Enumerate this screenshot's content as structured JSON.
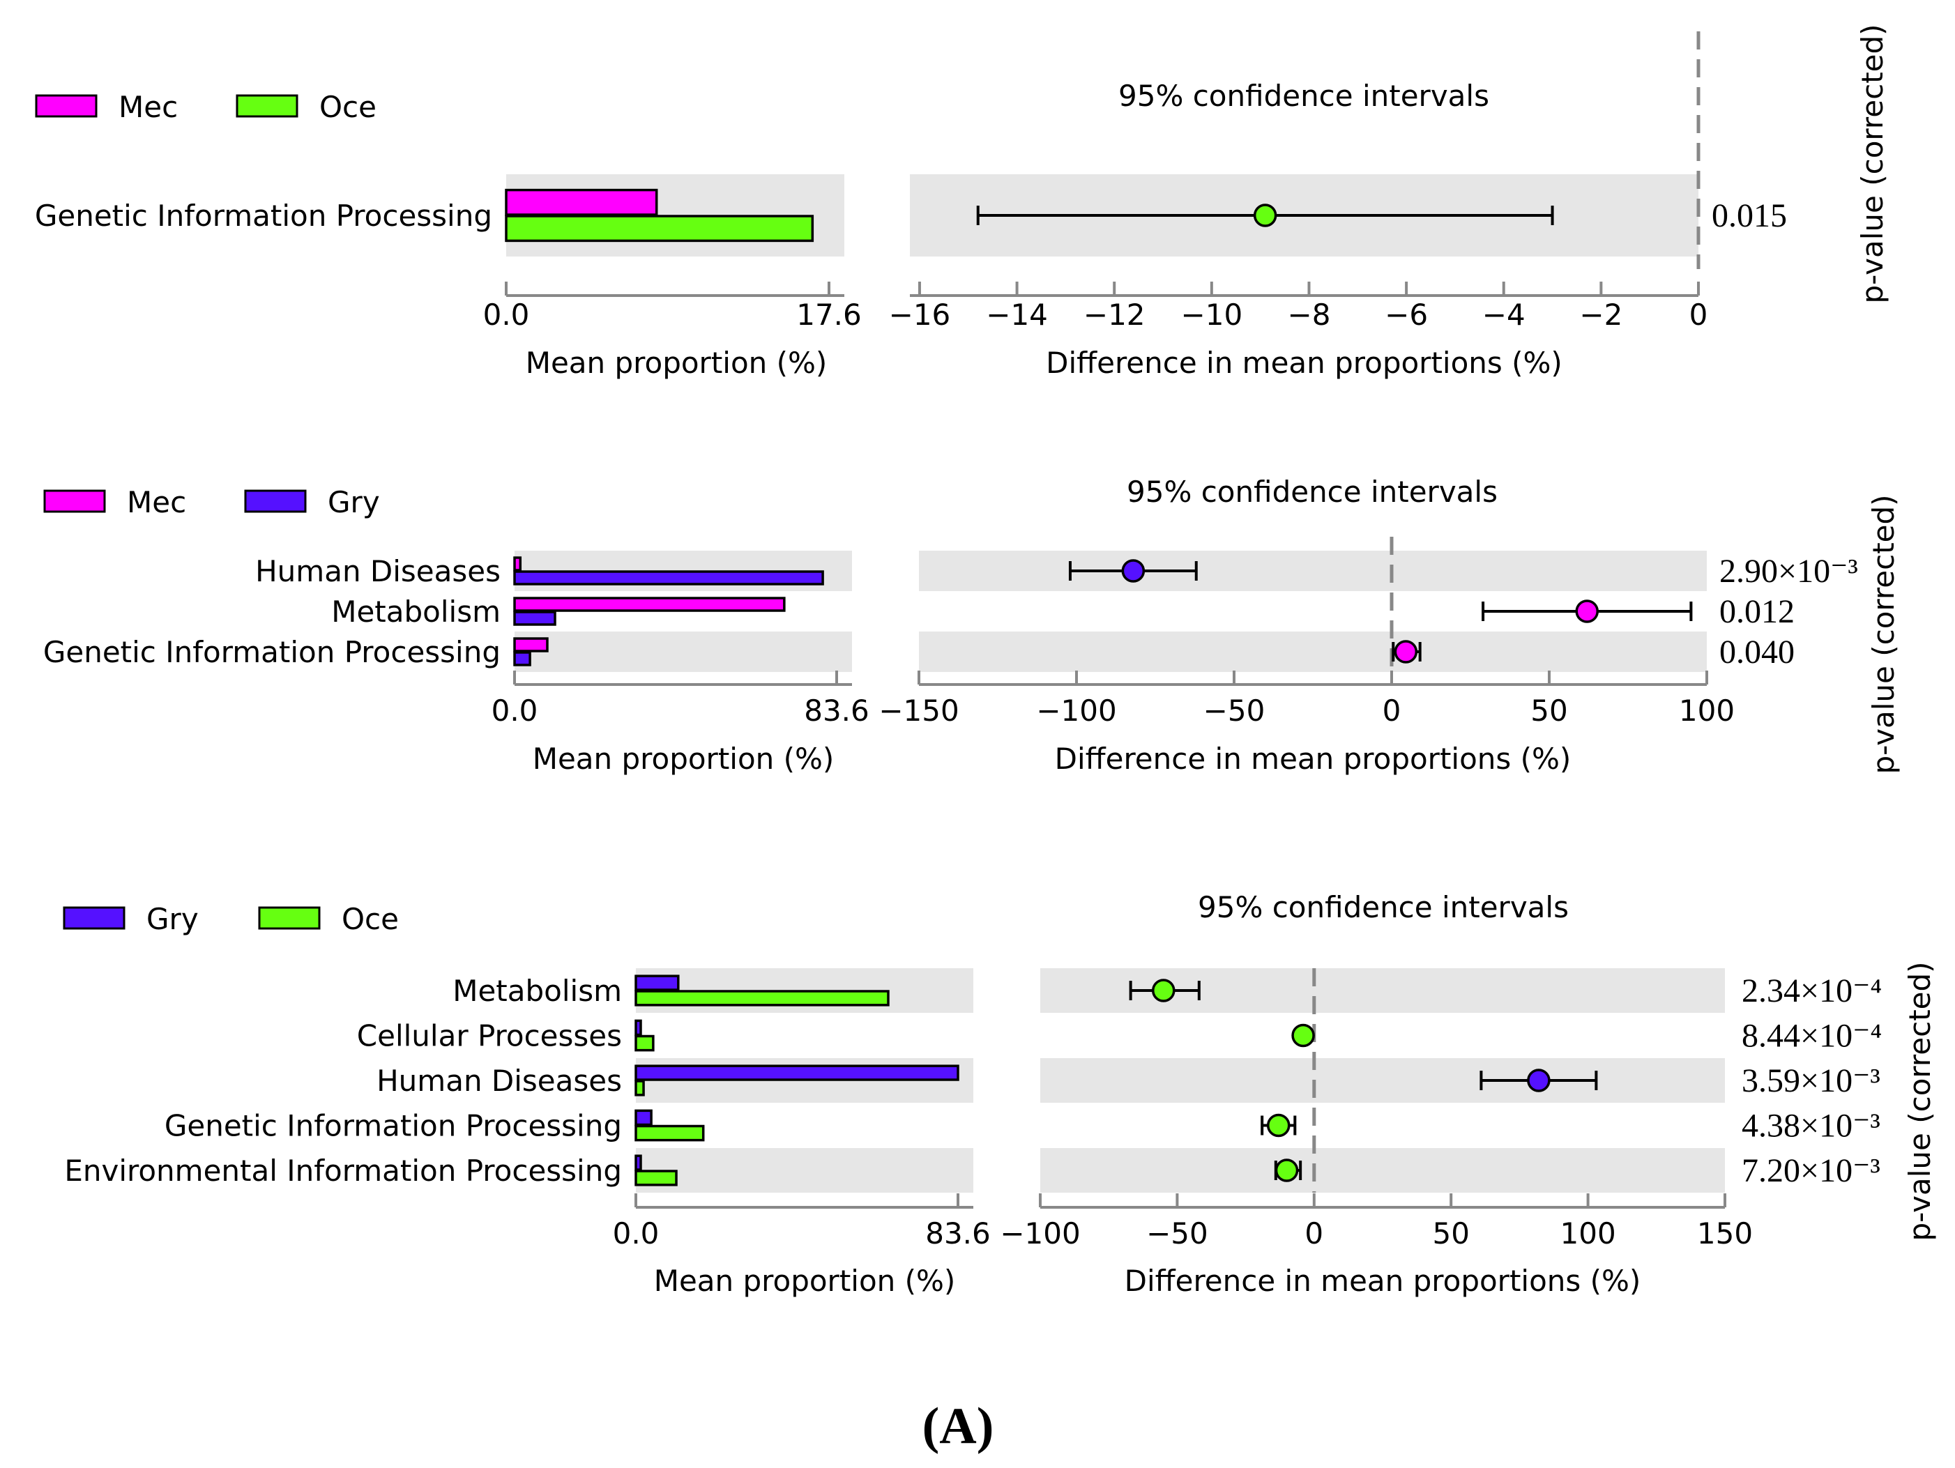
{
  "figure_label": "(A)",
  "colors": {
    "Mec": "#ff00ff",
    "Oce": "#66ff11",
    "Gry": "#5511ff",
    "band": "#e6e6e6",
    "axis": "#888888"
  },
  "chart_data": [
    {
      "type": "extended-error-bar",
      "title": "95% confidence intervals",
      "groups": [
        "Mec",
        "Oce"
      ],
      "group_colors": [
        "#ff00ff",
        "#66ff11"
      ],
      "left_xlabel": "Mean proportion (%)",
      "left_ticks": [
        "0.0",
        "17.6"
      ],
      "left_max": 17.6,
      "right_xlabel": "Difference in mean proportions (%)",
      "right_ticks": [
        "−16",
        "−14",
        "−12",
        "−10",
        "−8",
        "−6",
        "−4",
        "−2",
        "0"
      ],
      "right_tick_values": [
        -16,
        -14,
        -12,
        -10,
        -8,
        -6,
        -4,
        -2,
        0
      ],
      "right_range": [
        -16.2,
        0
      ],
      "pvalue_label": "p-value (corrected)",
      "rows": [
        {
          "category": "Genetic Information Processing",
          "values": [
            8.2,
            16.7
          ],
          "diff": -8.9,
          "ci": [
            -14.8,
            -3.0
          ],
          "winner": 1,
          "pvalue": "0.015"
        }
      ]
    },
    {
      "type": "extended-error-bar",
      "title": "95% confidence intervals",
      "groups": [
        "Mec",
        "Gry"
      ],
      "group_colors": [
        "#ff00ff",
        "#5511ff"
      ],
      "left_xlabel": "Mean proportion (%)",
      "left_ticks": [
        "0.0",
        "83.6"
      ],
      "left_max": 83.6,
      "right_xlabel": "Difference in mean proportions (%)",
      "right_ticks": [
        "−150",
        "−100",
        "−50",
        "0",
        "50",
        "100"
      ],
      "right_tick_values": [
        -150,
        -100,
        -50,
        0,
        50,
        100
      ],
      "right_range": [
        -150,
        100
      ],
      "pvalue_label": "p-value (corrected)",
      "rows": [
        {
          "category": "Human Diseases",
          "values": [
            1.5,
            80.0
          ],
          "diff": -82,
          "ci": [
            -102,
            -62
          ],
          "winner": 1,
          "pvalue": "2.90×10⁻³"
        },
        {
          "category": "Metabolism",
          "values": [
            70.0,
            10.5
          ],
          "diff": 62,
          "ci": [
            29,
            95
          ],
          "winner": 0,
          "pvalue": "0.012"
        },
        {
          "category": "Genetic Information Processing",
          "values": [
            8.5,
            4.0
          ],
          "diff": 4.5,
          "ci": [
            0.5,
            9
          ],
          "winner": 0,
          "pvalue": "0.040"
        }
      ]
    },
    {
      "type": "extended-error-bar",
      "title": "95% confidence intervals",
      "groups": [
        "Gry",
        "Oce"
      ],
      "group_colors": [
        "#5511ff",
        "#66ff11"
      ],
      "left_xlabel": "Mean proportion (%)",
      "left_ticks": [
        "0.0",
        "83.6"
      ],
      "left_max": 83.6,
      "right_xlabel": "Difference in mean proportions (%)",
      "right_ticks": [
        "−100",
        "−50",
        "0",
        "50",
        "100",
        "150"
      ],
      "right_tick_values": [
        -100,
        -50,
        0,
        50,
        100,
        150
      ],
      "right_range": [
        -100,
        150
      ],
      "pvalue_label": "p-value (corrected)",
      "rows": [
        {
          "category": "Metabolism",
          "values": [
            11.0,
            65.5
          ],
          "diff": -55,
          "ci": [
            -67,
            -42
          ],
          "winner": 1,
          "pvalue": "2.34×10⁻⁴"
        },
        {
          "category": "Cellular Processes",
          "values": [
            0.5,
            4.5
          ],
          "diff": -4,
          "ci": [
            -5,
            -3
          ],
          "winner": 1,
          "pvalue": "8.44×10⁻⁴"
        },
        {
          "category": "Human Diseases",
          "values": [
            83.6,
            2.0
          ],
          "diff": 82,
          "ci": [
            61,
            103
          ],
          "winner": 0,
          "pvalue": "3.59×10⁻³"
        },
        {
          "category": "Genetic Information Processing",
          "values": [
            4.0,
            17.5
          ],
          "diff": -13,
          "ci": [
            -19,
            -7
          ],
          "winner": 1,
          "pvalue": "4.38×10⁻³"
        },
        {
          "category": "Environmental Information Processing",
          "values": [
            0.6,
            10.5
          ],
          "diff": -10,
          "ci": [
            -14,
            -5
          ],
          "winner": 1,
          "pvalue": "7.20×10⁻³"
        }
      ]
    }
  ]
}
